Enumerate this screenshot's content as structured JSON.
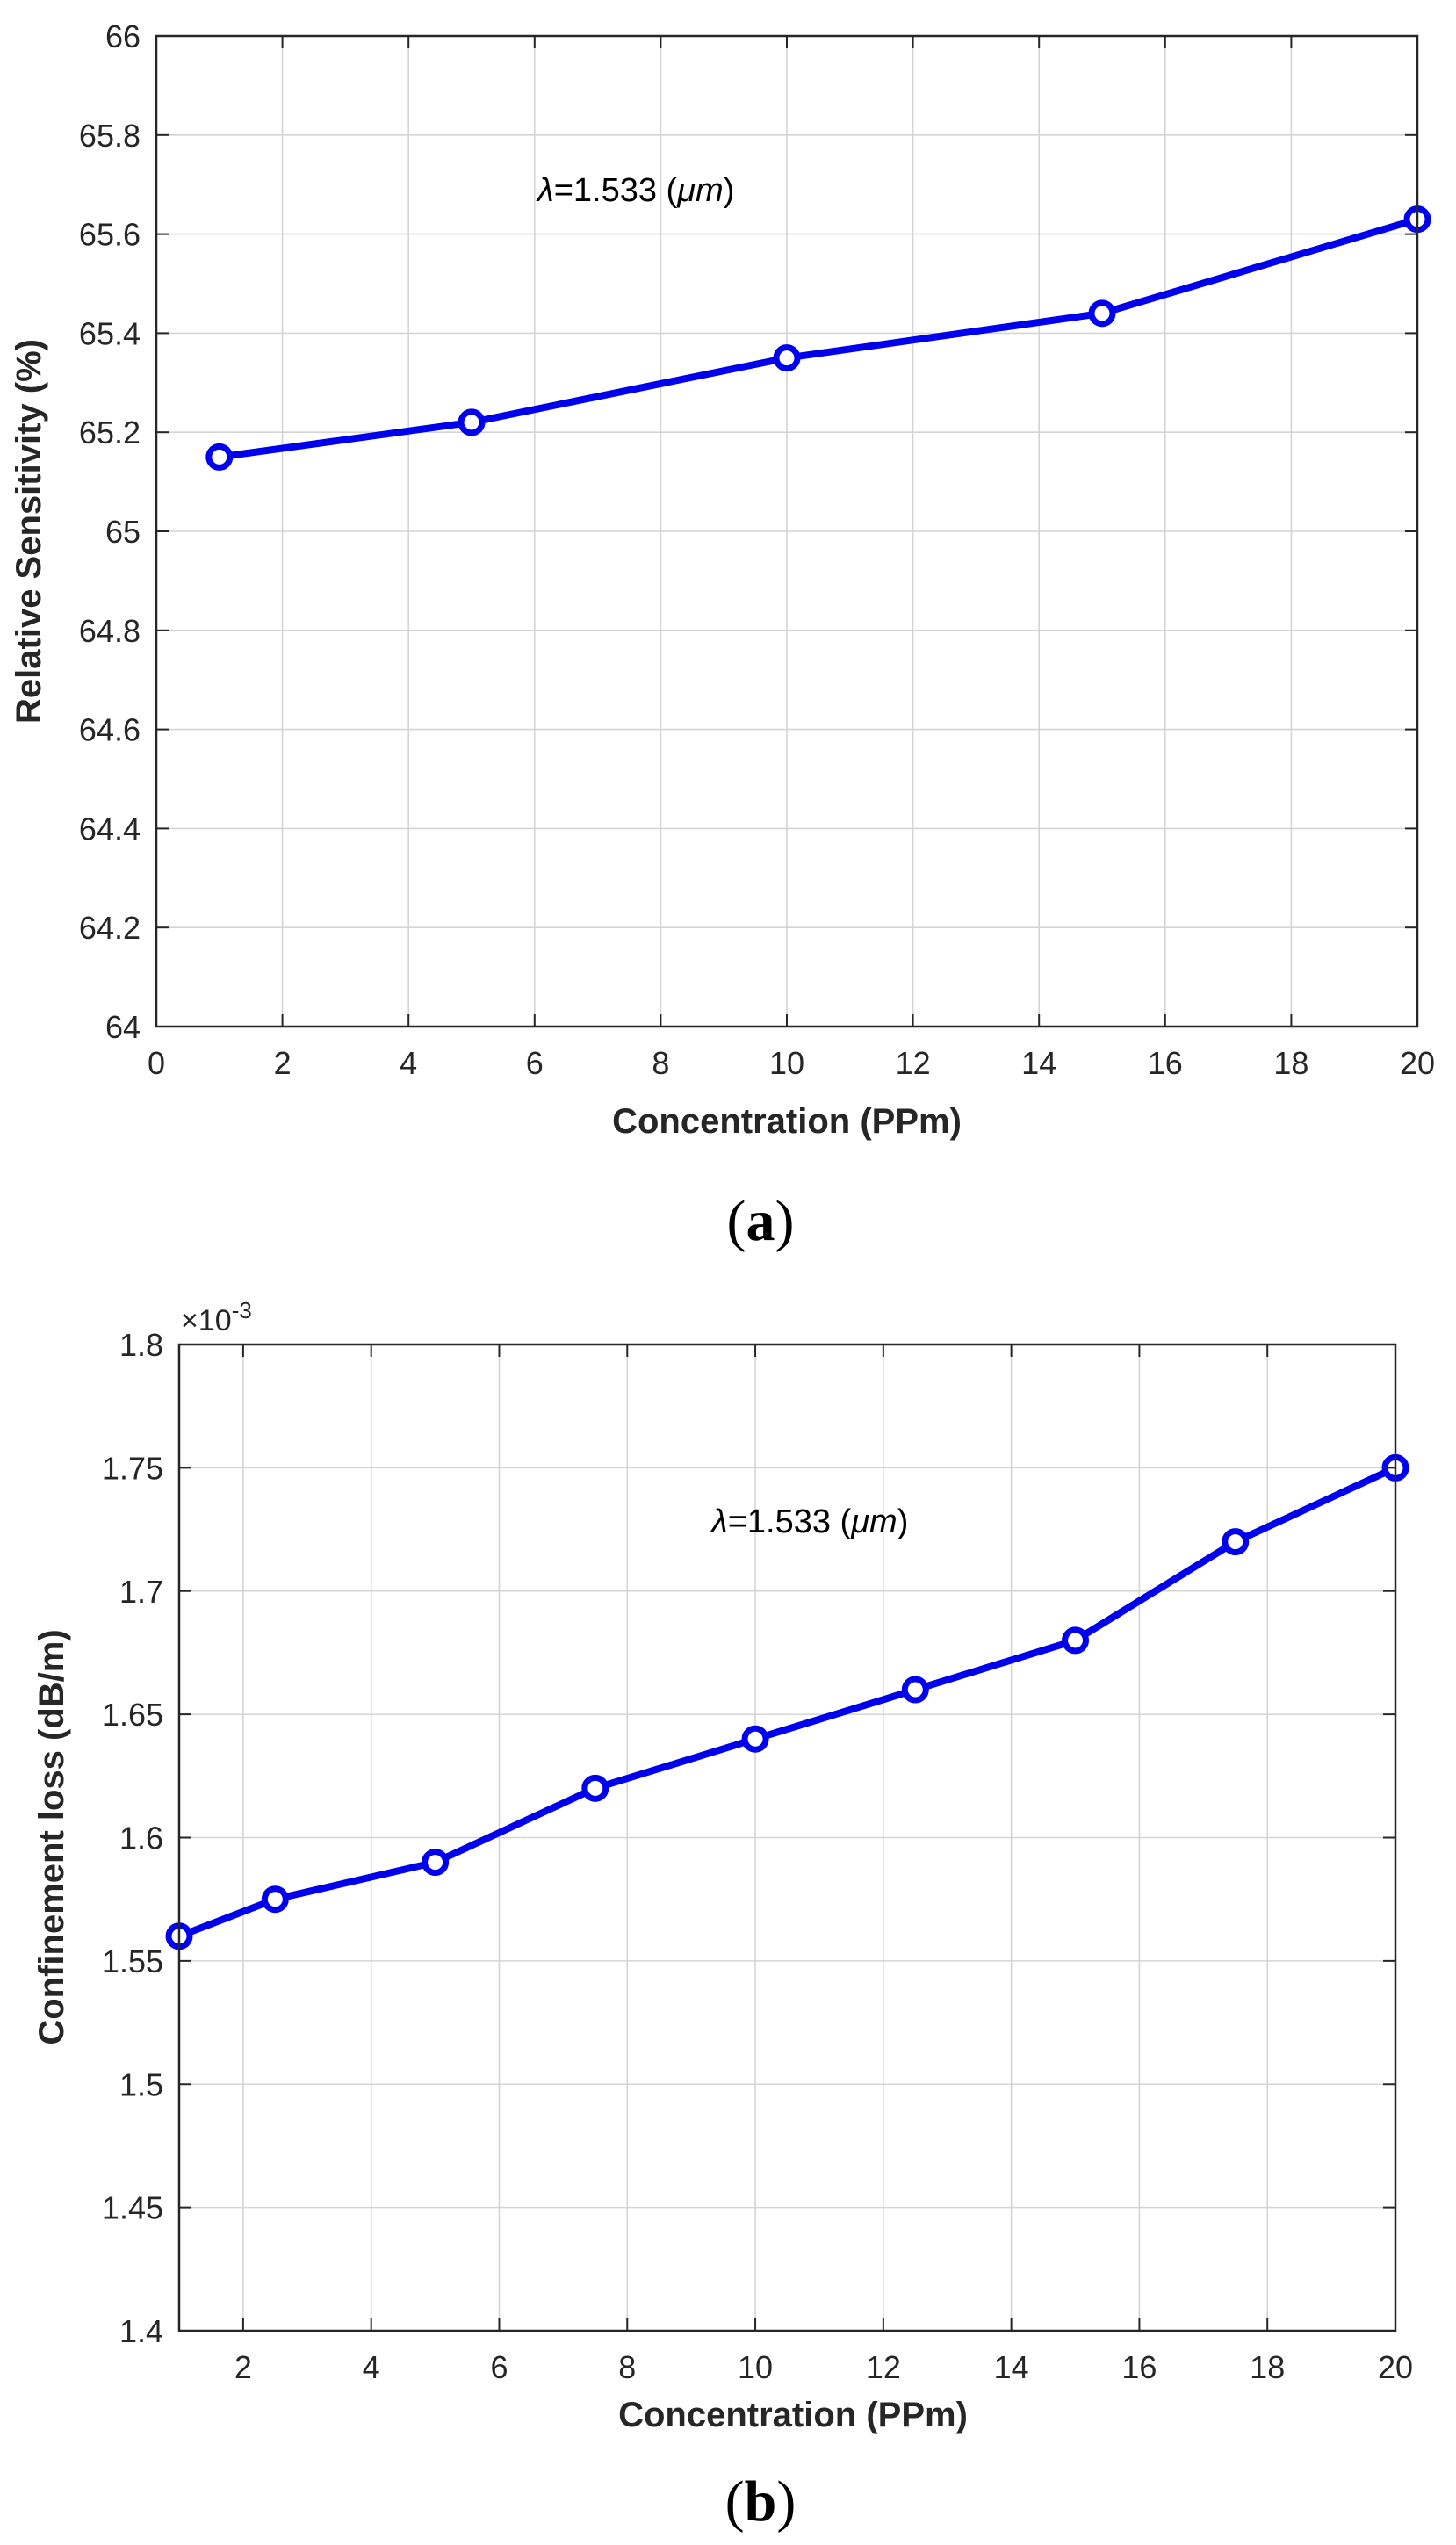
{
  "chart_data": [
    {
      "type": "line",
      "title": "",
      "xlabel": "Concentration (PPm)",
      "ylabel": "Relative Sensitivity (%)",
      "xlim": [
        0,
        20
      ],
      "ylim": [
        64,
        66
      ],
      "xticks": [
        "0",
        "2",
        "4",
        "6",
        "8",
        "10",
        "12",
        "14",
        "16",
        "18",
        "20"
      ],
      "yticks": [
        "64",
        "64.2",
        "64.4",
        "64.6",
        "64.8",
        "65",
        "65.2",
        "65.4",
        "65.6",
        "65.8",
        "66"
      ],
      "grid": true,
      "series": [
        {
          "name": "Relative Sensitivity",
          "color": "#0000ee",
          "marker": "circle",
          "x": [
            1,
            5,
            10,
            15,
            20
          ],
          "y": [
            65.15,
            65.22,
            65.35,
            65.44,
            65.63
          ]
        }
      ],
      "annotation": {
        "symbol": "λ",
        "text": "=1.533 (",
        "unit": "μm",
        "close": ")"
      },
      "caption": {
        "open": "(",
        "letter": "a",
        "close": ")"
      }
    },
    {
      "type": "line",
      "title": "",
      "xlabel": "Concentration (PPm)",
      "ylabel": "Confinement loss (dB/m)",
      "xlim": [
        1,
        20
      ],
      "ylim": [
        1.4,
        1.8
      ],
      "xticks": [
        "2",
        "4",
        "6",
        "8",
        "10",
        "12",
        "14",
        "16",
        "18",
        "20"
      ],
      "yticks": [
        "1.4",
        "1.45",
        "1.5",
        "1.55",
        "1.6",
        "1.65",
        "1.7",
        "1.75",
        "1.8"
      ],
      "y_exponent_label": "×10",
      "y_exponent": "-3",
      "grid": true,
      "series": [
        {
          "name": "Confinement loss",
          "color": "#0000ee",
          "marker": "circle",
          "x": [
            1,
            2.5,
            5,
            7.5,
            10,
            12.5,
            15,
            17.5,
            20
          ],
          "y": [
            1.56,
            1.575,
            1.59,
            1.62,
            1.64,
            1.66,
            1.68,
            1.72,
            1.75
          ]
        }
      ],
      "annotation": {
        "symbol": "λ",
        "text": "=1.533 (",
        "unit": "μm",
        "close": ")"
      },
      "caption": {
        "open": "(",
        "letter": "b",
        "close": ")"
      }
    }
  ]
}
